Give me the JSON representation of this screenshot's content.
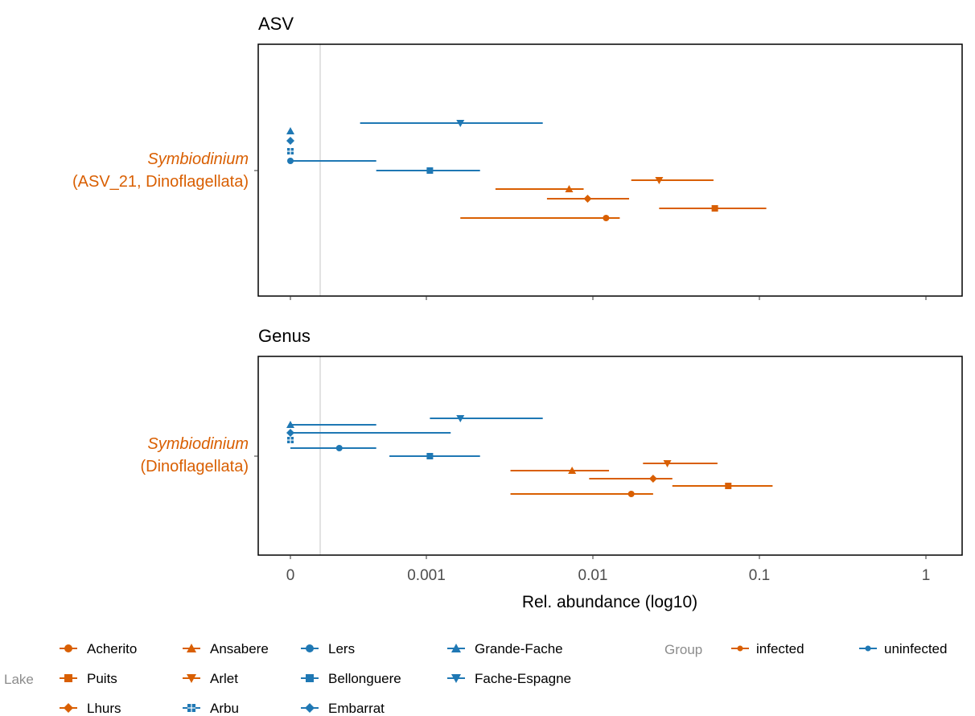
{
  "chart_data": [
    {
      "type": "scatter",
      "panel": "ASV",
      "title": "ASV",
      "y_label_italic": "Symbiodinium",
      "y_label_rest": "(ASV_21, Dinoflagellata)",
      "xlabel": "Rel. abundance (log10)",
      "series": [
        {
          "lake": "Fache-Espagne",
          "group": "uninfected",
          "value": 0.0016,
          "lo": 0.0004,
          "hi": 0.005
        },
        {
          "lake": "Grande-Fache",
          "group": "uninfected",
          "value": 0,
          "lo": 0,
          "hi": 0
        },
        {
          "lake": "Embarrat",
          "group": "uninfected",
          "value": 0,
          "lo": 0,
          "hi": 0
        },
        {
          "lake": "Arbu",
          "group": "uninfected",
          "value": 0,
          "lo": 0,
          "hi": 0
        },
        {
          "lake": "Lers",
          "group": "uninfected",
          "value": 0,
          "lo": 0,
          "hi": 0.0005
        },
        {
          "lake": "Bellonguere",
          "group": "uninfected",
          "value": 0.00105,
          "lo": 0.0005,
          "hi": 0.0021
        },
        {
          "lake": "Arlet",
          "group": "infected",
          "value": 0.025,
          "lo": 0.017,
          "hi": 0.053
        },
        {
          "lake": "Ansabere",
          "group": "infected",
          "value": 0.0072,
          "lo": 0.0026,
          "hi": 0.0088
        },
        {
          "lake": "Lhurs",
          "group": "infected",
          "value": 0.0093,
          "lo": 0.0053,
          "hi": 0.0165
        },
        {
          "lake": "Puits",
          "group": "infected",
          "value": 0.054,
          "lo": 0.025,
          "hi": 0.11
        },
        {
          "lake": "Acherito",
          "group": "infected",
          "value": 0.012,
          "lo": 0.0016,
          "hi": 0.0145
        }
      ]
    },
    {
      "type": "scatter",
      "panel": "Genus",
      "title": "Genus",
      "y_label_italic": "Symbiodinium",
      "y_label_rest": "(Dinoflagellata)",
      "xlabel": "Rel. abundance (log10)",
      "series": [
        {
          "lake": "Fache-Espagne",
          "group": "uninfected",
          "value": 0.0016,
          "lo": 0.00105,
          "hi": 0.005
        },
        {
          "lake": "Grande-Fache",
          "group": "uninfected",
          "value": 0,
          "lo": 0,
          "hi": 0.0005
        },
        {
          "lake": "Embarrat",
          "group": "uninfected",
          "value": 0,
          "lo": 0,
          "hi": 0.0014
        },
        {
          "lake": "Arbu",
          "group": "uninfected",
          "value": 0,
          "lo": 0,
          "hi": 0
        },
        {
          "lake": "Lers",
          "group": "uninfected",
          "value": 0.0003,
          "lo": 0,
          "hi": 0.0005
        },
        {
          "lake": "Bellonguere",
          "group": "uninfected",
          "value": 0.00105,
          "lo": 0.0006,
          "hi": 0.0021
        },
        {
          "lake": "Arlet",
          "group": "infected",
          "value": 0.028,
          "lo": 0.02,
          "hi": 0.056
        },
        {
          "lake": "Ansabere",
          "group": "infected",
          "value": 0.0075,
          "lo": 0.0032,
          "hi": 0.0125
        },
        {
          "lake": "Lhurs",
          "group": "infected",
          "value": 0.023,
          "lo": 0.0095,
          "hi": 0.03
        },
        {
          "lake": "Puits",
          "group": "infected",
          "value": 0.065,
          "lo": 0.03,
          "hi": 0.12
        },
        {
          "lake": "Acherito",
          "group": "infected",
          "value": 0.017,
          "lo": 0.0032,
          "hi": 0.023
        }
      ]
    }
  ],
  "x_axis": {
    "scale": "log10-with-zero",
    "ticks": [
      {
        "value": 0,
        "label": "0"
      },
      {
        "value": 0.001,
        "label": "0.001"
      },
      {
        "value": 0.01,
        "label": "0.01"
      },
      {
        "value": 0.1,
        "label": "0.1"
      },
      {
        "value": 1,
        "label": "1"
      }
    ],
    "reference_line_value": 0.0002,
    "label": "Rel. abundance (log10)"
  },
  "colors": {
    "infected": "#D95F02",
    "uninfected": "#1F78B4",
    "label": "#D95F02",
    "reference_line": "#d9d9d9"
  },
  "legend": {
    "lake_title": "Lake",
    "group_title": "Group",
    "lakes": [
      {
        "name": "Acherito",
        "group": "infected",
        "shape": "circle"
      },
      {
        "name": "Puits",
        "group": "infected",
        "shape": "square"
      },
      {
        "name": "Lhurs",
        "group": "infected",
        "shape": "diamond"
      },
      {
        "name": "Ansabere",
        "group": "infected",
        "shape": "triangle-up"
      },
      {
        "name": "Arlet",
        "group": "infected",
        "shape": "triangle-down"
      },
      {
        "name": "Arbu",
        "group": "uninfected",
        "shape": "square-cross"
      },
      {
        "name": "Lers",
        "group": "uninfected",
        "shape": "circle"
      },
      {
        "name": "Bellonguere",
        "group": "uninfected",
        "shape": "square"
      },
      {
        "name": "Embarrat",
        "group": "uninfected",
        "shape": "diamond"
      },
      {
        "name": "Grande-Fache",
        "group": "uninfected",
        "shape": "triangle-up"
      },
      {
        "name": "Fache-Espagne",
        "group": "uninfected",
        "shape": "triangle-down"
      }
    ],
    "groups": [
      {
        "name": "infected",
        "color": "#D95F02"
      },
      {
        "name": "uninfected",
        "color": "#1F78B4"
      }
    ]
  }
}
